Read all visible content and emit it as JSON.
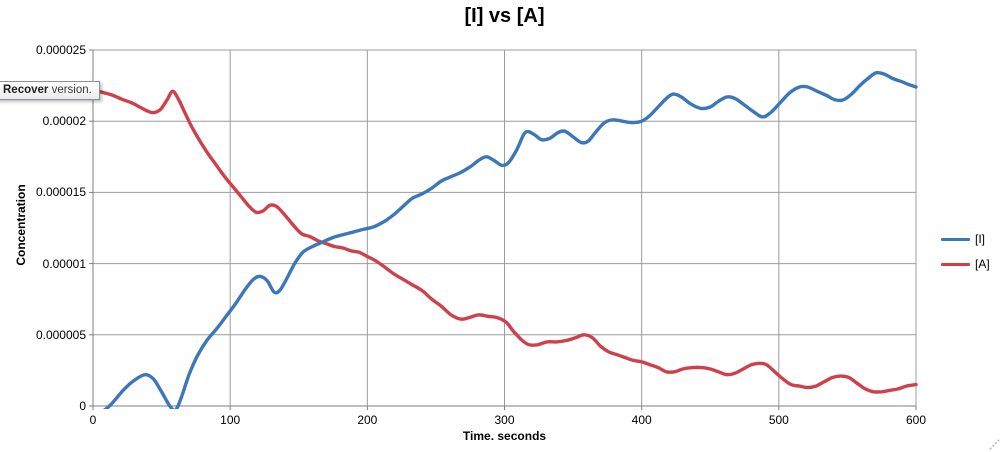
{
  "window": {
    "tooltip": {
      "bold_text": "Recover",
      "regular_text": " version."
    }
  },
  "colors": {
    "series_I": "#3B77B9",
    "series_A": "#CE414B",
    "gridline": "#9C9C9C",
    "axis": "#7F7F7F",
    "title_text": "#000000",
    "resize_grip": "#ADADAD"
  },
  "chart_data": {
    "type": "line",
    "title": "[I] vs [A]",
    "xlabel": "Time. seconds",
    "ylabel": "Concentration",
    "xlim": [
      0,
      600
    ],
    "ylim": [
      0,
      2.5e-05
    ],
    "x_ticks": [
      "0",
      "100",
      "200",
      "300",
      "400",
      "500",
      "600"
    ],
    "x_tick_values": [
      0,
      100,
      200,
      300,
      400,
      500,
      600
    ],
    "y_ticks": [
      "0",
      "0.000005",
      "0.00001",
      "0.000015",
      "0.00002",
      "0.000025"
    ],
    "y_tick_values_e6": [
      0,
      5,
      10,
      15,
      20,
      25
    ],
    "grid": "horizontal and vertical gridlines at every tick",
    "legend_position": "right",
    "y_unit_multiplier": 1e-06,
    "series": [
      {
        "name": "[I]",
        "color": "#3B77B9",
        "points_t_and_conc_e6": [
          [
            0,
            -0.5
          ],
          [
            8,
            -0.3
          ],
          [
            14,
            0.2
          ],
          [
            22,
            1.1
          ],
          [
            30,
            1.8
          ],
          [
            38,
            2.2
          ],
          [
            44,
            1.9
          ],
          [
            50,
            1.0
          ],
          [
            56,
            0.0
          ],
          [
            60,
            -0.3
          ],
          [
            64,
            0.5
          ],
          [
            70,
            2.2
          ],
          [
            76,
            3.5
          ],
          [
            83,
            4.6
          ],
          [
            90,
            5.4
          ],
          [
            97,
            6.3
          ],
          [
            104,
            7.2
          ],
          [
            111,
            8.2
          ],
          [
            117,
            8.9
          ],
          [
            122,
            9.1
          ],
          [
            127,
            8.8
          ],
          [
            132,
            8.0
          ],
          [
            136,
            8.1
          ],
          [
            141,
            8.9
          ],
          [
            147,
            10.0
          ],
          [
            153,
            10.8
          ],
          [
            160,
            11.2
          ],
          [
            167,
            11.5
          ],
          [
            174,
            11.8
          ],
          [
            181,
            12.0
          ],
          [
            189,
            12.2
          ],
          [
            197,
            12.4
          ],
          [
            205,
            12.6
          ],
          [
            213,
            13.0
          ],
          [
            220,
            13.5
          ],
          [
            227,
            14.1
          ],
          [
            233,
            14.6
          ],
          [
            240,
            14.9
          ],
          [
            247,
            15.3
          ],
          [
            254,
            15.8
          ],
          [
            261,
            16.1
          ],
          [
            268,
            16.4
          ],
          [
            275,
            16.8
          ],
          [
            282,
            17.3
          ],
          [
            287,
            17.5
          ],
          [
            293,
            17.2
          ],
          [
            298,
            16.9
          ],
          [
            303,
            17.1
          ],
          [
            309,
            18.0
          ],
          [
            315,
            19.2
          ],
          [
            321,
            19.1
          ],
          [
            327,
            18.7
          ],
          [
            333,
            18.8
          ],
          [
            339,
            19.2
          ],
          [
            344,
            19.3
          ],
          [
            350,
            18.9
          ],
          [
            356,
            18.5
          ],
          [
            361,
            18.6
          ],
          [
            367,
            19.3
          ],
          [
            373,
            19.9
          ],
          [
            379,
            20.1
          ],
          [
            386,
            20.0
          ],
          [
            393,
            19.9
          ],
          [
            400,
            20.0
          ],
          [
            406,
            20.4
          ],
          [
            412,
            21.0
          ],
          [
            418,
            21.6
          ],
          [
            423,
            21.9
          ],
          [
            429,
            21.7
          ],
          [
            436,
            21.2
          ],
          [
            443,
            20.9
          ],
          [
            450,
            21.0
          ],
          [
            456,
            21.4
          ],
          [
            462,
            21.7
          ],
          [
            468,
            21.6
          ],
          [
            474,
            21.2
          ],
          [
            481,
            20.7
          ],
          [
            488,
            20.3
          ],
          [
            494,
            20.6
          ],
          [
            501,
            21.3
          ],
          [
            508,
            22.0
          ],
          [
            515,
            22.4
          ],
          [
            521,
            22.4
          ],
          [
            528,
            22.1
          ],
          [
            535,
            21.8
          ],
          [
            541,
            21.5
          ],
          [
            547,
            21.5
          ],
          [
            553,
            21.9
          ],
          [
            559,
            22.5
          ],
          [
            565,
            23.0
          ],
          [
            571,
            23.4
          ],
          [
            577,
            23.3
          ],
          [
            583,
            23.0
          ],
          [
            589,
            22.8
          ],
          [
            594,
            22.6
          ],
          [
            600,
            22.4
          ]
        ]
      },
      {
        "name": "[A]",
        "color": "#CE414B",
        "points_t_and_conc_e6": [
          [
            0,
            22.2
          ],
          [
            8,
            22.0
          ],
          [
            15,
            21.8
          ],
          [
            22,
            21.5
          ],
          [
            28,
            21.3
          ],
          [
            34,
            21.0
          ],
          [
            40,
            20.7
          ],
          [
            44,
            20.6
          ],
          [
            49,
            20.8
          ],
          [
            54,
            21.5
          ],
          [
            58,
            22.1
          ],
          [
            62,
            21.6
          ],
          [
            67,
            20.6
          ],
          [
            72,
            19.6
          ],
          [
            78,
            18.6
          ],
          [
            84,
            17.7
          ],
          [
            90,
            16.9
          ],
          [
            96,
            16.1
          ],
          [
            102,
            15.4
          ],
          [
            108,
            14.7
          ],
          [
            114,
            14.0
          ],
          [
            119,
            13.6
          ],
          [
            124,
            13.7
          ],
          [
            129,
            14.1
          ],
          [
            134,
            14.0
          ],
          [
            140,
            13.4
          ],
          [
            146,
            12.7
          ],
          [
            152,
            12.1
          ],
          [
            158,
            11.9
          ],
          [
            164,
            11.6
          ],
          [
            170,
            11.4
          ],
          [
            176,
            11.2
          ],
          [
            182,
            11.1
          ],
          [
            188,
            10.9
          ],
          [
            194,
            10.8
          ],
          [
            200,
            10.5
          ],
          [
            206,
            10.2
          ],
          [
            212,
            9.8
          ],
          [
            219,
            9.3
          ],
          [
            226,
            8.9
          ],
          [
            233,
            8.5
          ],
          [
            240,
            8.1
          ],
          [
            247,
            7.5
          ],
          [
            254,
            7.0
          ],
          [
            261,
            6.4
          ],
          [
            268,
            6.1
          ],
          [
            274,
            6.2
          ],
          [
            281,
            6.4
          ],
          [
            288,
            6.3
          ],
          [
            295,
            6.2
          ],
          [
            301,
            5.9
          ],
          [
            307,
            5.2
          ],
          [
            313,
            4.6
          ],
          [
            318,
            4.3
          ],
          [
            324,
            4.3
          ],
          [
            331,
            4.5
          ],
          [
            338,
            4.5
          ],
          [
            345,
            4.6
          ],
          [
            352,
            4.8
          ],
          [
            358,
            5.0
          ],
          [
            364,
            4.8
          ],
          [
            370,
            4.2
          ],
          [
            376,
            3.8
          ],
          [
            382,
            3.6
          ],
          [
            388,
            3.4
          ],
          [
            394,
            3.2
          ],
          [
            400,
            3.1
          ],
          [
            406,
            2.9
          ],
          [
            412,
            2.7
          ],
          [
            418,
            2.4
          ],
          [
            424,
            2.4
          ],
          [
            430,
            2.6
          ],
          [
            437,
            2.7
          ],
          [
            444,
            2.7
          ],
          [
            450,
            2.6
          ],
          [
            456,
            2.4
          ],
          [
            462,
            2.2
          ],
          [
            468,
            2.3
          ],
          [
            474,
            2.6
          ],
          [
            480,
            2.9
          ],
          [
            486,
            3.0
          ],
          [
            491,
            2.9
          ],
          [
            497,
            2.4
          ],
          [
            503,
            1.9
          ],
          [
            509,
            1.5
          ],
          [
            515,
            1.4
          ],
          [
            521,
            1.3
          ],
          [
            527,
            1.4
          ],
          [
            533,
            1.7
          ],
          [
            539,
            2.0
          ],
          [
            545,
            2.1
          ],
          [
            551,
            2.0
          ],
          [
            557,
            1.6
          ],
          [
            563,
            1.2
          ],
          [
            569,
            1.0
          ],
          [
            575,
            1.0
          ],
          [
            581,
            1.1
          ],
          [
            587,
            1.2
          ],
          [
            593,
            1.4
          ],
          [
            600,
            1.5
          ]
        ]
      }
    ]
  }
}
